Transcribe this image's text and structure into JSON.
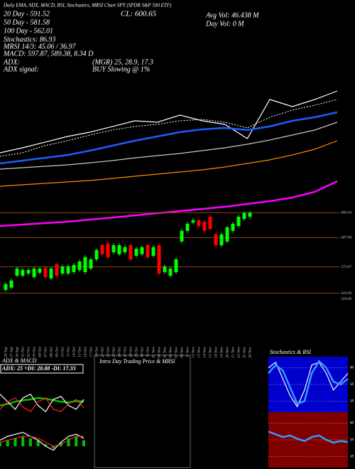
{
  "header": {
    "title": "Daily EMA, ADX, MACD, RSI, Stochastics, MRSI Chart SPY (SPDR S&P 500 ETF)",
    "ema20": "20 Day - 591.52",
    "close": "CL: 600.65",
    "avg_vol": "Avg Vol: 46.438 M",
    "ema50": "50 Day - 581.58",
    "day_vol": "Day Vol: 0 M",
    "ema100": "100 Day - 562.01",
    "stochastics": "Stochastics: 86.93",
    "mrsi": "MRSI 14/3: 45.06 / 36.97",
    "macd": "MACD: 597.87, 589.38, 8.34 D",
    "adx_label": "ADX:",
    "adx_values": "(MGR) 25, 28.9, 17.3",
    "adx_signal_label": "ADX signal:",
    "adx_signal": "BUY Slowing @ 1%"
  },
  "chart_data": [
    {
      "type": "line",
      "ylim": [
        440,
        610
      ],
      "series": [
        {
          "color": "#ffffff",
          "style": "solid",
          "values": [
            528.9,
            534.3,
            540.4,
            546.6,
            551.3,
            557.4,
            563.6,
            562.1,
            569.8,
            563.6,
            559.8,
            544.3,
            586.8,
            579.1,
            586.8,
            596.1
          ]
        },
        {
          "color": "#ffffff",
          "style": "dotted",
          "values": [
            525.0,
            528.9,
            536.6,
            542.0,
            548.2,
            553.6,
            557.5,
            559.8,
            563.6,
            565.2,
            562.1,
            555.9,
            567.5,
            575.2,
            580.6,
            586.8
          ]
        },
        {
          "color": "#1e5cff",
          "style": "thick",
          "values": [
            517.3,
            520.4,
            523.4,
            526.5,
            531.2,
            536.6,
            542.0,
            546.6,
            551.3,
            554.4,
            555.9,
            553.6,
            557.5,
            563.6,
            567.5,
            572.9
          ]
        },
        {
          "color": "#c8c8c8",
          "style": "solid",
          "values": [
            511.1,
            512.6,
            514.2,
            515.7,
            518.0,
            520.4,
            523.4,
            525.8,
            528.1,
            531.2,
            534.3,
            538.1,
            542.8,
            548.2,
            553.6,
            562.1
          ]
        },
        {
          "color": "#ff8c00",
          "style": "solid",
          "values": [
            492.5,
            494.1,
            495.6,
            497.2,
            498.7,
            501.0,
            503.4,
            505.7,
            508.0,
            510.3,
            513.4,
            517.3,
            521.1,
            526.5,
            532.7,
            542.0
          ]
        },
        {
          "color": "#ff00ff",
          "style": "thick",
          "values": [
            449.3,
            450.8,
            452.4,
            453.9,
            456.2,
            458.5,
            460.8,
            463.2,
            465.5,
            467.8,
            470.1,
            473.2,
            476.3,
            480.2,
            486.4,
            497.9
          ]
        }
      ]
    },
    {
      "type": "candlestick",
      "ylim": [
        557,
        604
      ],
      "up_color": "#00ff00",
      "down_color": "#ff0000",
      "level_color": "#8b4513",
      "categories": [
        "26 Sep",
        "27 Sep",
        "30 Sep",
        "01 Oct",
        "02 Oct",
        "03 Oct",
        "04 Oct",
        "07 Oct",
        "08 Oct",
        "09 Oct",
        "10 Oct",
        "11 Oct",
        "14 Oct",
        "15 Oct",
        "16 Oct",
        "17 Oct",
        "18 Oct",
        "21 Oct",
        "22 Oct",
        "23 Oct",
        "24 Oct",
        "25 Oct",
        "28 Oct",
        "29 Oct",
        "30 Oct",
        "31 Oct",
        "01 Nov",
        "04 Nov",
        "05 Nov",
        "06 Nov",
        "07 Nov",
        "08 Nov",
        "11 Nov",
        "12 Nov",
        "13 Nov",
        "14 Nov",
        "15 Nov",
        "18 Nov",
        "19 Nov",
        "20 Nov",
        "21 Nov",
        "22 Nov",
        "25 Nov",
        "26 Nov"
      ],
      "open": [
        561.4,
        562.5,
        568.6,
        568.6,
        569.7,
        567.9,
        570.1,
        572.6,
        567.2,
        574.4,
        569.7,
        569.7,
        570.4,
        571.5,
        570.4,
        572.2,
        576.9,
        584.1,
        585.0,
        580.5,
        579.5,
        580.5,
        584.1,
        578.7,
        579.5,
        584.1,
        578.7,
        584.1,
        570.4,
        568.6,
        570.4,
        586.0,
        591.4,
        595.6,
        596.8,
        596.0,
        598.6,
        589.6,
        584.1,
        586.0,
        591.4,
        593.9,
        597.5,
        598.6
      ],
      "high": [
        565.3,
        567.1,
        573.2,
        572.5,
        572.5,
        573.2,
        573.2,
        573.6,
        573.2,
        575.4,
        574.3,
        574.3,
        575.0,
        576.8,
        579.0,
        577.9,
        582.6,
        585.1,
        586.0,
        585.1,
        585.1,
        584.1,
        585.1,
        583.3,
        584.1,
        585.1,
        584.1,
        585.1,
        574.3,
        573.2,
        577.9,
        592.4,
        596.0,
        597.8,
        597.8,
        597.0,
        599.6,
        590.6,
        590.6,
        594.2,
        596.0,
        599.6,
        601.4,
        601.6
      ],
      "low": [
        560.4,
        561.5,
        567.6,
        567.6,
        568.7,
        566.9,
        569.1,
        566.9,
        566.2,
        567.6,
        568.7,
        568.7,
        569.4,
        570.5,
        569.4,
        571.2,
        575.9,
        578.5,
        577.0,
        579.5,
        578.5,
        579.5,
        575.9,
        577.7,
        578.5,
        577.0,
        577.7,
        568.7,
        569.4,
        567.6,
        569.4,
        585.0,
        590.4,
        594.6,
        592.9,
        590.4,
        591.4,
        583.1,
        583.1,
        585.0,
        590.4,
        592.9,
        596.5,
        597.6
      ],
      "close": [
        564.3,
        566.1,
        572.2,
        571.5,
        571.5,
        572.2,
        572.2,
        567.9,
        572.2,
        568.6,
        573.3,
        573.3,
        574.0,
        575.8,
        578.0,
        576.9,
        581.6,
        579.5,
        578.0,
        584.1,
        584.1,
        583.1,
        576.9,
        582.3,
        583.1,
        578.0,
        583.1,
        569.7,
        573.3,
        572.2,
        576.9,
        591.4,
        595.0,
        596.8,
        593.9,
        591.4,
        592.4,
        584.1,
        589.6,
        593.2,
        595.0,
        598.6,
        600.4,
        600.6
      ],
      "levels": [
        600.63,
        587.94,
        573.07,
        559.69,
        559.69
      ]
    },
    {
      "type": "line",
      "title": "ADX & MACD",
      "subtitle": "ADX: 25 +DI: 28.88 -DI: 17.33",
      "ylim": [
        0,
        60
      ],
      "series": [
        {
          "color": "#00c000",
          "style": "thick",
          "values": [
            20,
            22,
            25,
            27,
            28,
            30,
            29,
            27,
            25,
            24,
            26,
            25
          ]
        },
        {
          "color": "#ffffff",
          "style": "solid",
          "values": [
            35,
            25,
            15,
            30,
            35,
            20,
            12,
            28,
            32,
            20,
            15,
            28
          ]
        },
        {
          "color": "#ff2020",
          "style": "solid",
          "values": [
            15,
            25,
            30,
            18,
            12,
            25,
            30,
            15,
            12,
            22,
            28,
            17
          ]
        }
      ]
    },
    {
      "type": "macd",
      "ylim": [
        -10,
        10
      ],
      "color": "#00c000",
      "histogram": [
        2,
        3,
        4,
        5,
        4,
        3,
        1,
        -1,
        2,
        4,
        5,
        3
      ],
      "series": [
        {
          "color": "#ffffff",
          "style": "solid",
          "values": [
            3,
            5,
            6,
            7,
            5,
            3,
            0,
            -2,
            2,
            5,
            6,
            4
          ]
        },
        {
          "color": "#ff2020",
          "style": "solid",
          "values": [
            2,
            3,
            4,
            5,
            5,
            4,
            2,
            0,
            1,
            3,
            5,
            5
          ]
        }
      ]
    },
    {
      "type": "line",
      "title": "Intra Day Trading Price & MRSI",
      "series": []
    },
    {
      "type": "line",
      "title": "Stochastics & RSI",
      "background": "#0000cc",
      "ylim": [
        0,
        100
      ],
      "yticks": [
        20,
        50,
        80
      ],
      "series": [
        {
          "color": "#ffffff",
          "style": "solid",
          "values": [
            80,
            90,
            60,
            30,
            10,
            40,
            85,
            90,
            70,
            40,
            55,
            70
          ]
        },
        {
          "color": "#3399ff",
          "style": "thick",
          "values": [
            70,
            85,
            75,
            45,
            15,
            20,
            70,
            92,
            80,
            55,
            50,
            60
          ]
        }
      ]
    },
    {
      "type": "line",
      "background": "#800000",
      "ylim": [
        0,
        100
      ],
      "yticks": [
        20,
        50,
        80
      ],
      "series": [
        {
          "color": "#3399ff",
          "style": "thick",
          "values": [
            65,
            60,
            55,
            58,
            52,
            48,
            55,
            58,
            50,
            45,
            48,
            46
          ]
        }
      ]
    }
  ]
}
